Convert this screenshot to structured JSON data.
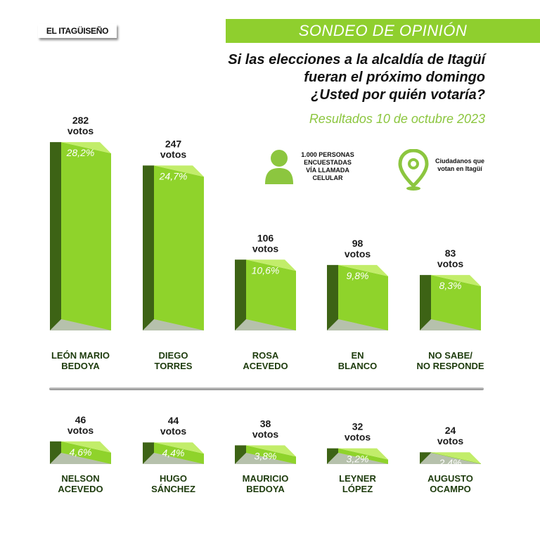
{
  "header": {
    "logo_text": "EL ITAGÜISEÑO",
    "banner": "SONDEO DE OPINIÓN",
    "question_lines": [
      "Si las elecciones a la alcaldía de Itagüí",
      "fueran el próximo domingo",
      "¿Usted por quién votaría?"
    ],
    "results_date": "Resultados 10 de octubre 2023"
  },
  "info": {
    "people": {
      "icon": "person-icon",
      "lines": [
        "1.000 PERSONAS",
        "ENCUESTADAS",
        "VÍA LLAMADA",
        "CELULAR"
      ]
    },
    "location": {
      "icon": "location-pin-icon",
      "lines": [
        "Ciudadanos que",
        "votan en Itagüí"
      ]
    }
  },
  "colors": {
    "front": "#8fd32b",
    "side": "#3d6315",
    "top": "#c2ed6a",
    "accent": "#8cc63f",
    "label_dark": "#1d3b0c"
  },
  "chart_data": {
    "type": "bar",
    "unit_word": "votos",
    "rows": [
      {
        "categories": [
          [
            "LEÓN MARIO",
            "BEDOYA"
          ],
          [
            "DIEGO",
            "TORRES"
          ],
          [
            "ROSA",
            "ACEVEDO"
          ],
          [
            "EN",
            "BLANCO"
          ],
          [
            "NO SABE/",
            "NO RESPONDE"
          ]
        ],
        "votes": [
          282,
          247,
          106,
          98,
          83
        ],
        "percent_labels": [
          "28,2%",
          "24,7%",
          "10,6%",
          "9,8%",
          "8,3%"
        ],
        "percent": [
          28.2,
          24.7,
          10.6,
          9.8,
          8.3
        ]
      },
      {
        "categories": [
          [
            "NELSON",
            "ACEVEDO"
          ],
          [
            "HUGO",
            "SÁNCHEZ"
          ],
          [
            "MAURICIO",
            "BEDOYA"
          ],
          [
            "LEYNER",
            "LÓPEZ"
          ],
          [
            "AUGUSTO",
            "OCAMPO"
          ]
        ],
        "votes": [
          46,
          44,
          38,
          32,
          24
        ],
        "percent_labels": [
          "4,6%",
          "4,4%",
          "3,8%",
          "3,2%",
          "2,4%"
        ],
        "percent": [
          4.6,
          4.4,
          3.8,
          3.2,
          2.4
        ]
      }
    ]
  }
}
